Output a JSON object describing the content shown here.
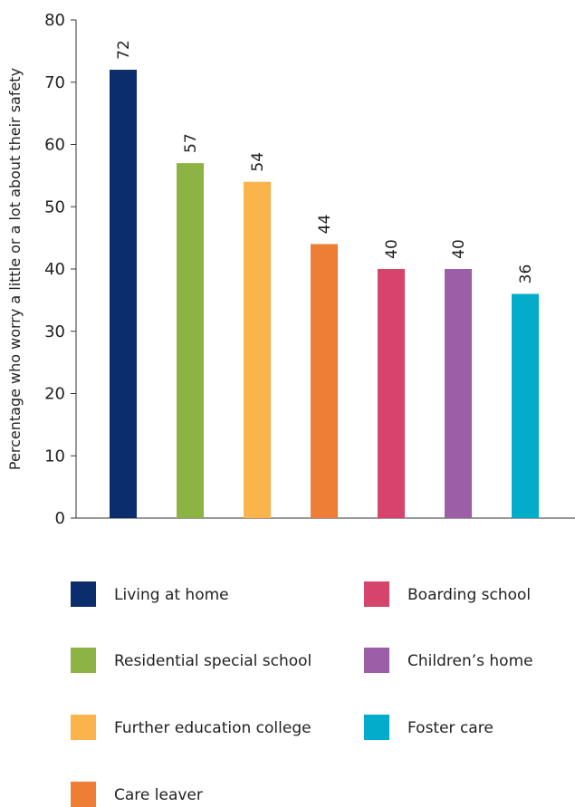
{
  "chart_data": {
    "type": "bar",
    "title": "",
    "xlabel": "",
    "ylabel": "Percentage who worry a little or a lot about their safety",
    "ylim": [
      0,
      80
    ],
    "yticks": [
      0,
      10,
      20,
      30,
      40,
      50,
      60,
      70,
      80
    ],
    "grid": false,
    "legend_position": "bottom",
    "categories": [
      "Living at home",
      "Residential special school",
      "Further education college",
      "Care leaver",
      "Boarding school",
      "Children’s home",
      "Foster care"
    ],
    "values": [
      72,
      57,
      54,
      44,
      40,
      40,
      36
    ],
    "colors": [
      "#0c2d6b",
      "#8cb443",
      "#fbb34c",
      "#ee7d35",
      "#d6436b",
      "#9b5ea7",
      "#04accb"
    ]
  }
}
